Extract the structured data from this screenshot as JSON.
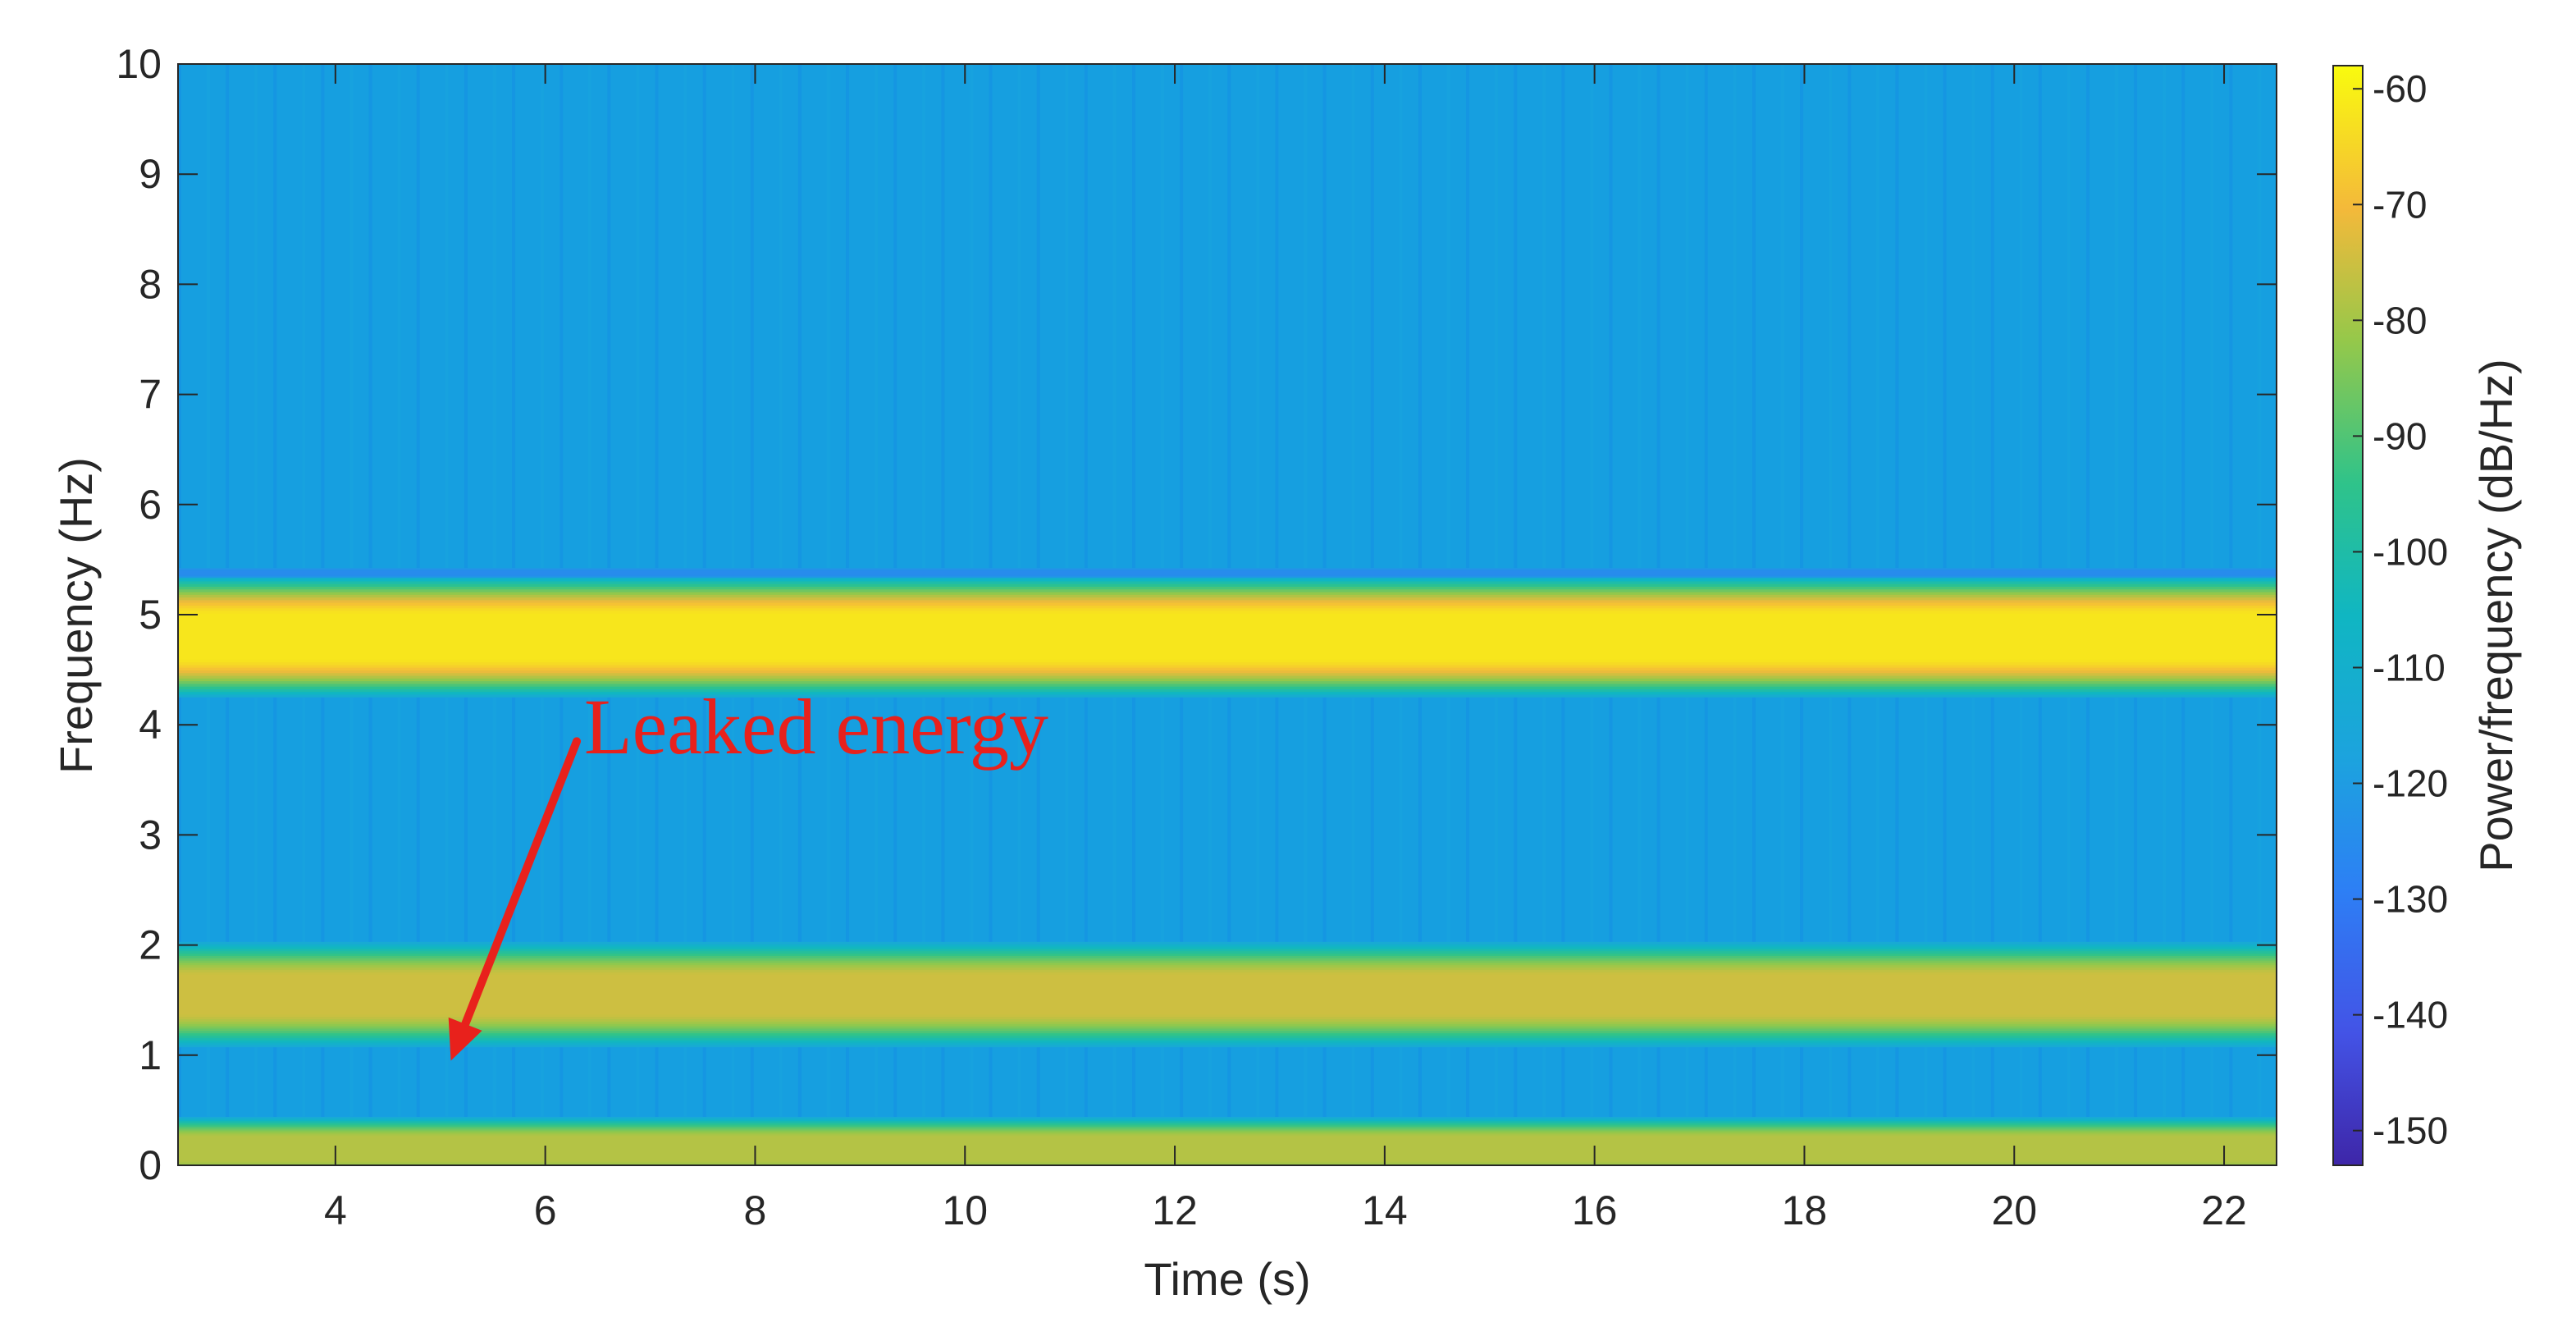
{
  "chart_data": {
    "type": "heatmap",
    "title": "",
    "xlabel": "Time (s)",
    "ylabel": "Frequency (Hz)",
    "xlim": [
      2.5,
      22.5
    ],
    "ylim": [
      0,
      10
    ],
    "x_ticks": [
      4,
      6,
      8,
      10,
      12,
      14,
      16,
      18,
      20,
      22
    ],
    "y_ticks": [
      0,
      1,
      2,
      3,
      4,
      5,
      6,
      7,
      8,
      9,
      10
    ],
    "grid": false,
    "colorbar": {
      "label": "Power/frequency (dB/Hz)",
      "range": [
        -153,
        -58
      ],
      "ticks": [
        -60,
        -70,
        -80,
        -90,
        -100,
        -110,
        -120,
        -130,
        -140,
        -150
      ],
      "colormap": "parula"
    },
    "background_level_db": -120,
    "bands": [
      {
        "frequency_hz": 4.8,
        "half_width_hz": 0.38,
        "level_db": -62
      },
      {
        "frequency_hz": 1.55,
        "half_width_hz": 0.33,
        "level_db": -75
      },
      {
        "frequency_hz": 0.15,
        "half_width_hz": 0.2,
        "level_db": -78
      },
      {
        "frequency_hz": 5.38,
        "half_width_hz": 0.03,
        "level_db": -125
      }
    ],
    "annotation": {
      "text": "Leaked energy",
      "color": "#e8211c",
      "arrow_from": [
        6.3,
        3.85
      ],
      "arrow_to": [
        5.1,
        0.95
      ]
    }
  }
}
